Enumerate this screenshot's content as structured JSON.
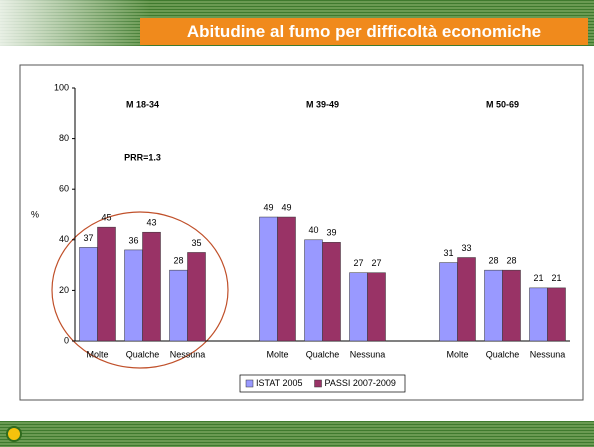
{
  "chart_data": {
    "type": "bar",
    "title": "Abitudine al fumo per difficoltà economiche",
    "y_label": "%",
    "group_labels": [
      "M 18-34",
      "M 39-49",
      "M 50-69"
    ],
    "annotation": "PRR=1.3",
    "categories": [
      "Molte",
      "Qualche",
      "Nessuna",
      null,
      "Molte",
      "Qualche",
      "Nessuna",
      null,
      "Molte",
      "Qualche",
      "Nessuna"
    ],
    "series": [
      {
        "name": "ISTAT 2005",
        "color": "#9999ff",
        "label_color": "#3333cc",
        "values": [
          37,
          36,
          28,
          null,
          49,
          40,
          27,
          null,
          31,
          28,
          21
        ]
      },
      {
        "name": "PASSI 2007-2009",
        "color": "#993366",
        "label_color": "#993333",
        "values": [
          45,
          43,
          35,
          null,
          49,
          39,
          27,
          null,
          33,
          28,
          21
        ]
      }
    ],
    "ylim": [
      0,
      100
    ],
    "yticks": [
      0,
      20,
      40,
      60,
      80,
      100
    ],
    "grid": false,
    "legend": "bottom"
  }
}
